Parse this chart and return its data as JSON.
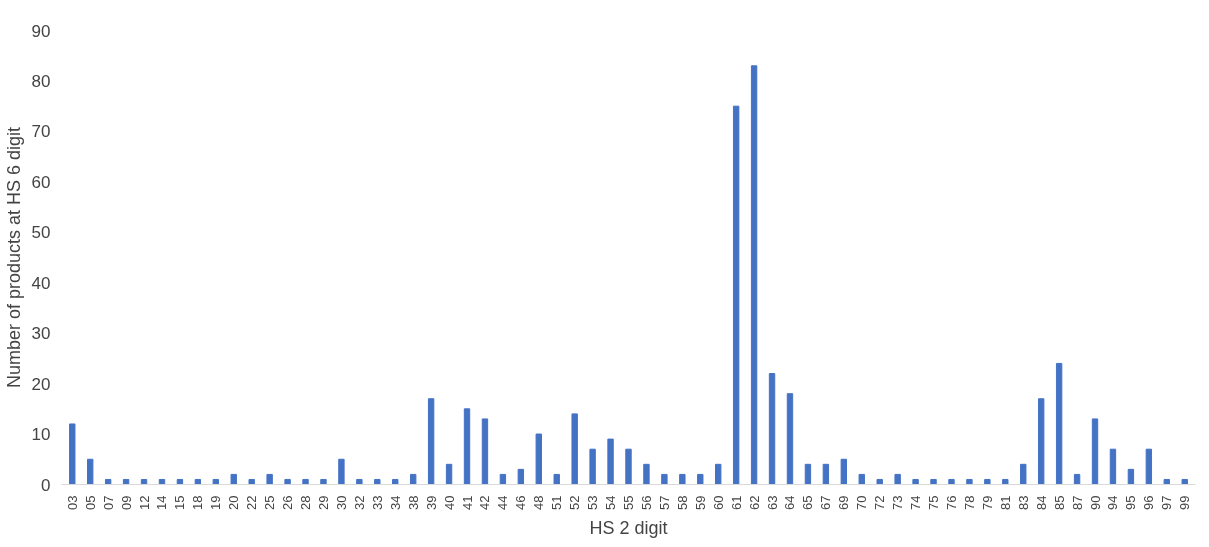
{
  "chart_data": {
    "type": "bar",
    "xlabel": "HS 2 digit",
    "ylabel": "Number of products at HS 6 digit",
    "categories": [
      "03",
      "05",
      "07",
      "09",
      "12",
      "14",
      "15",
      "18",
      "19",
      "20",
      "22",
      "25",
      "26",
      "28",
      "29",
      "30",
      "32",
      "33",
      "34",
      "38",
      "39",
      "40",
      "41",
      "42",
      "44",
      "46",
      "48",
      "51",
      "52",
      "53",
      "54",
      "55",
      "56",
      "57",
      "58",
      "59",
      "60",
      "61",
      "62",
      "63",
      "64",
      "65",
      "67",
      "69",
      "70",
      "72",
      "73",
      "74",
      "75",
      "76",
      "78",
      "79",
      "81",
      "83",
      "84",
      "85",
      "87",
      "90",
      "94",
      "95",
      "96",
      "97",
      "99"
    ],
    "values": [
      12,
      5,
      1,
      1,
      1,
      1,
      1,
      1,
      1,
      2,
      1,
      2,
      1,
      1,
      1,
      5,
      1,
      1,
      1,
      2,
      17,
      4,
      15,
      13,
      2,
      3,
      10,
      2,
      14,
      7,
      9,
      7,
      4,
      2,
      2,
      2,
      4,
      75,
      83,
      22,
      18,
      4,
      4,
      5,
      2,
      1,
      2,
      1,
      1,
      1,
      1,
      1,
      1,
      4,
      17,
      24,
      2,
      13,
      7,
      3,
      7,
      1,
      1
    ],
    "color": "#4472c4",
    "ylim": [
      0,
      90
    ],
    "yticks": [
      0,
      10,
      20,
      30,
      40,
      50,
      60,
      70,
      80,
      90
    ],
    "grid": false
  }
}
